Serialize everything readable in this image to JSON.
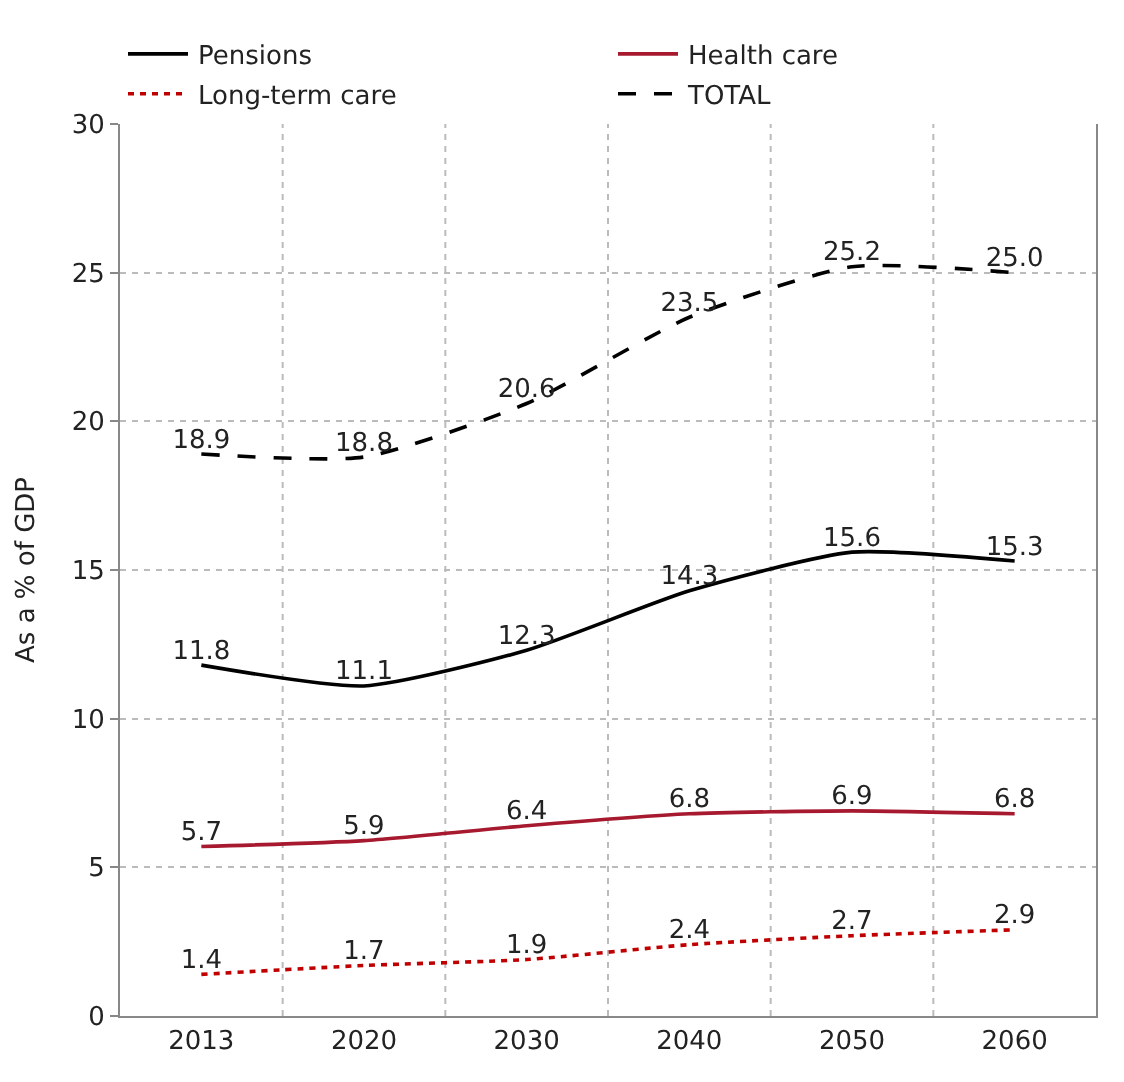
{
  "chart_data": {
    "type": "line",
    "ylabel": "As a % of GDP",
    "categories": [
      "2013",
      "2020",
      "2030",
      "2040",
      "2050",
      "2060"
    ],
    "series": [
      {
        "name": "Pensions",
        "color": "#000000",
        "line_style": "solid",
        "values": [
          11.8,
          11.1,
          12.3,
          14.3,
          15.6,
          15.3
        ],
        "value_labels": [
          "11.8",
          "11.1",
          "12.3",
          "14.3",
          "15.6",
          "15.3"
        ]
      },
      {
        "name": "Health care",
        "color": "#a6192e",
        "line_style": "solid",
        "values": [
          5.7,
          5.9,
          6.4,
          6.8,
          6.9,
          6.8
        ],
        "value_labels": [
          "5.7",
          "5.9",
          "6.4",
          "6.8",
          "6.9",
          "6.8"
        ]
      },
      {
        "name": "Long-term care",
        "color": "#c00000",
        "line_style": "dotted",
        "values": [
          1.4,
          1.7,
          1.9,
          2.4,
          2.7,
          2.9
        ],
        "value_labels": [
          "1.4",
          "1.7",
          "1.9",
          "2.4",
          "2.7",
          "2.9"
        ]
      },
      {
        "name": "TOTAL",
        "color": "#000000",
        "line_style": "dashed",
        "values": [
          18.9,
          18.8,
          20.6,
          23.5,
          25.2,
          25.0
        ],
        "value_labels": [
          "18.9",
          "18.8",
          "20.6",
          "23.5",
          "25.2",
          "25.0"
        ]
      }
    ],
    "ylim": [
      0,
      30
    ],
    "yticks": [
      0,
      5,
      10,
      15,
      20,
      25,
      30
    ],
    "grid": true,
    "legend": "top",
    "marker": "none"
  }
}
